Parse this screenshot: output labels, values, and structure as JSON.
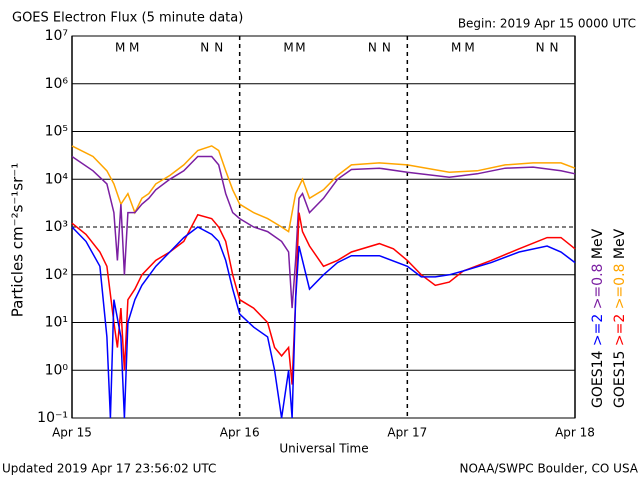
{
  "chart_data": {
    "type": "line",
    "title": "GOES Electron Flux (5 minute data)",
    "subtitle": "Begin: 2019 Apr 15 0000 UTC",
    "x_label": "Universal Time",
    "y_label": "Particles cm⁻²s⁻¹sr⁻¹",
    "footer_left": "Updated 2019 Apr 17 23:56:02 UTC",
    "footer_right": "NOAA/SWPC Boulder, CO USA",
    "log_y": true,
    "grid": true,
    "threshold": 1000,
    "xlim": [
      0,
      72
    ],
    "xticks": [
      {
        "value": 0,
        "label": "Apr 15"
      },
      {
        "value": 24,
        "label": "Apr 16"
      },
      {
        "value": 48,
        "label": "Apr 17"
      },
      {
        "value": 72,
        "label": "Apr 18"
      }
    ],
    "ylim": [
      0.1,
      10000000
    ],
    "yticks": [
      {
        "value": 0.1,
        "label": "10⁻¹"
      },
      {
        "value": 1,
        "label": "10⁰"
      },
      {
        "value": 10,
        "label": "10¹"
      },
      {
        "value": 100,
        "label": "10²"
      },
      {
        "value": 1000,
        "label": "10³"
      },
      {
        "value": 10000,
        "label": "10⁴"
      },
      {
        "value": 100000,
        "label": "10⁵"
      },
      {
        "value": 1000000,
        "label": "10⁶"
      },
      {
        "value": 10000000,
        "label": "10⁷"
      }
    ],
    "legend_groups": [
      "GOES14",
      "GOES15"
    ],
    "legend_unit": "MeV",
    "series": [
      {
        "name": ">=0.8",
        "group": 1,
        "color": "#ffa500",
        "x": [
          0,
          3,
          5,
          6,
          7,
          8,
          9,
          10,
          11,
          12,
          14,
          16,
          18,
          20,
          21,
          22,
          23,
          24,
          26,
          28,
          30,
          31,
          32,
          33,
          34,
          36,
          38,
          40,
          44,
          48,
          54,
          58,
          62,
          66,
          70,
          72
        ],
        "values": [
          50000,
          30000,
          15000,
          8000,
          3000,
          5000,
          2000,
          4000,
          5000,
          8000,
          12000,
          20000,
          40000,
          50000,
          40000,
          15000,
          6000,
          3000,
          2000,
          1500,
          1000,
          800,
          5000,
          10000,
          4000,
          6000,
          12000,
          20000,
          22000,
          20000,
          14000,
          15000,
          20000,
          22000,
          22000,
          17000
        ]
      },
      {
        "name": ">=0.8",
        "group": 0,
        "color": "#7b1fa2",
        "x": [
          0,
          3,
          5,
          6,
          6.5,
          7,
          7.5,
          8,
          9,
          10,
          11,
          12,
          14,
          16,
          18,
          20,
          21,
          22,
          23,
          24,
          26,
          28,
          30,
          31,
          31.5,
          32,
          32.5,
          33,
          34,
          36,
          38,
          40,
          44,
          48,
          54,
          58,
          62,
          66,
          70,
          72
        ],
        "values": [
          30000,
          15000,
          8000,
          2000,
          200,
          3000,
          100,
          2000,
          2000,
          3000,
          4000,
          6000,
          10000,
          15000,
          30000,
          30000,
          20000,
          5000,
          2000,
          1500,
          1000,
          800,
          500,
          300,
          20,
          200,
          4000,
          5000,
          2000,
          4000,
          10000,
          16000,
          17000,
          14000,
          11000,
          13000,
          17000,
          18000,
          15000,
          13000
        ]
      },
      {
        "name": ">=2",
        "group": 1,
        "color": "#ff0000",
        "x": [
          0,
          2,
          4,
          5,
          6,
          6.5,
          7,
          7.5,
          8,
          9,
          10,
          12,
          14,
          16,
          18,
          20,
          21,
          22,
          23,
          24,
          26,
          28,
          29,
          30,
          31,
          31.5,
          32,
          32.5,
          33,
          34,
          36,
          38,
          40,
          44,
          46,
          48,
          50,
          52,
          54,
          56,
          60,
          64,
          68,
          70,
          72
        ],
        "values": [
          1200,
          700,
          300,
          150,
          10,
          3,
          20,
          1,
          30,
          50,
          100,
          200,
          300,
          500,
          1800,
          1500,
          1000,
          500,
          100,
          30,
          20,
          10,
          3,
          2,
          3,
          0.5,
          30,
          2000,
          800,
          400,
          150,
          200,
          300,
          450,
          350,
          200,
          100,
          60,
          70,
          120,
          200,
          350,
          600,
          600,
          350
        ]
      },
      {
        "name": ">=2",
        "group": 0,
        "color": "#0000ff",
        "x": [
          0,
          2,
          4,
          5,
          5.5,
          6,
          7,
          7.5,
          8,
          9,
          10,
          12,
          14,
          16,
          18,
          20,
          21,
          22,
          23,
          24,
          26,
          28,
          29,
          30,
          31,
          31.5,
          32,
          32.5,
          33,
          34,
          36,
          38,
          40,
          44,
          48,
          50,
          52,
          54,
          56,
          60,
          64,
          68,
          70,
          72
        ],
        "values": [
          1000,
          500,
          150,
          5,
          0.1,
          30,
          5,
          0.1,
          10,
          30,
          60,
          150,
          300,
          600,
          1000,
          700,
          500,
          200,
          50,
          15,
          8,
          5,
          1,
          0.1,
          1,
          0.1,
          30,
          400,
          200,
          50,
          100,
          180,
          250,
          250,
          150,
          90,
          90,
          100,
          120,
          180,
          300,
          400,
          300,
          180
        ]
      }
    ],
    "annotations": [
      {
        "x": 6.9,
        "text": "M",
        "color": "#0000ff"
      },
      {
        "x": 8.9,
        "text": "M",
        "color": "#ff0000"
      },
      {
        "x": 19,
        "text": "N",
        "color": "#0000ff"
      },
      {
        "x": 21,
        "text": "N",
        "color": "#ff0000"
      },
      {
        "x": 31,
        "text": "M",
        "color": "#0000ff"
      },
      {
        "x": 32.7,
        "text": "M",
        "color": "#ff0000"
      },
      {
        "x": 43,
        "text": "N",
        "color": "#0000ff"
      },
      {
        "x": 45,
        "text": "N",
        "color": "#ff0000"
      },
      {
        "x": 55,
        "text": "M",
        "color": "#0000ff"
      },
      {
        "x": 56.9,
        "text": "M",
        "color": "#ff0000"
      },
      {
        "x": 67,
        "text": "N",
        "color": "#0000ff"
      },
      {
        "x": 69,
        "text": "N",
        "color": "#ff0000"
      }
    ]
  }
}
